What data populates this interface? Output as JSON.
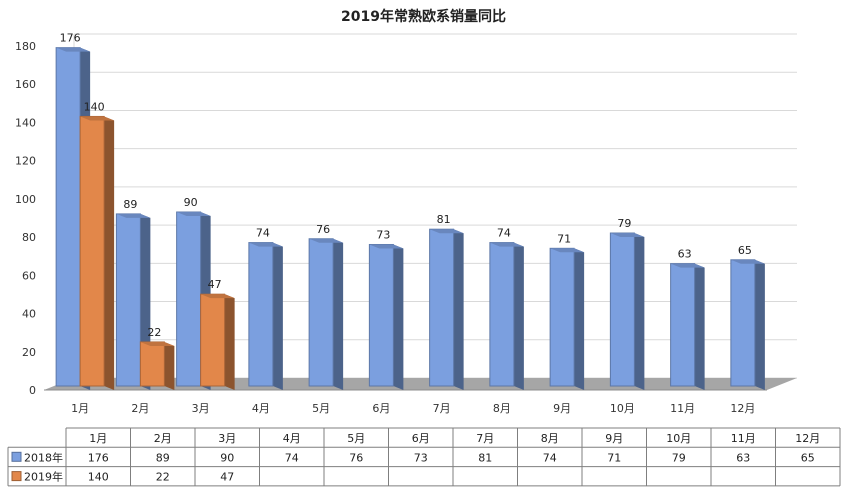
{
  "chart_data": {
    "type": "bar",
    "title": "2019年常熟欧系销量同比",
    "categories": [
      "1月",
      "2月",
      "3月",
      "4月",
      "5月",
      "6月",
      "7月",
      "8月",
      "9月",
      "10月",
      "11月",
      "12月"
    ],
    "series": [
      {
        "name": "2018年",
        "color": "#7b9fdf",
        "values": [
          176,
          89,
          90,
          74,
          76,
          73,
          81,
          74,
          71,
          79,
          63,
          65
        ]
      },
      {
        "name": "2019年",
        "color": "#e2874a",
        "values": [
          140,
          22,
          47,
          null,
          null,
          null,
          null,
          null,
          null,
          null,
          null,
          null
        ]
      }
    ],
    "yticks": [
      0,
      20,
      40,
      60,
      80,
      100,
      120,
      140,
      160,
      180
    ],
    "ylim": [
      0,
      180
    ],
    "grid": true,
    "legend": "data-table",
    "style": "3d-clustered-column"
  }
}
